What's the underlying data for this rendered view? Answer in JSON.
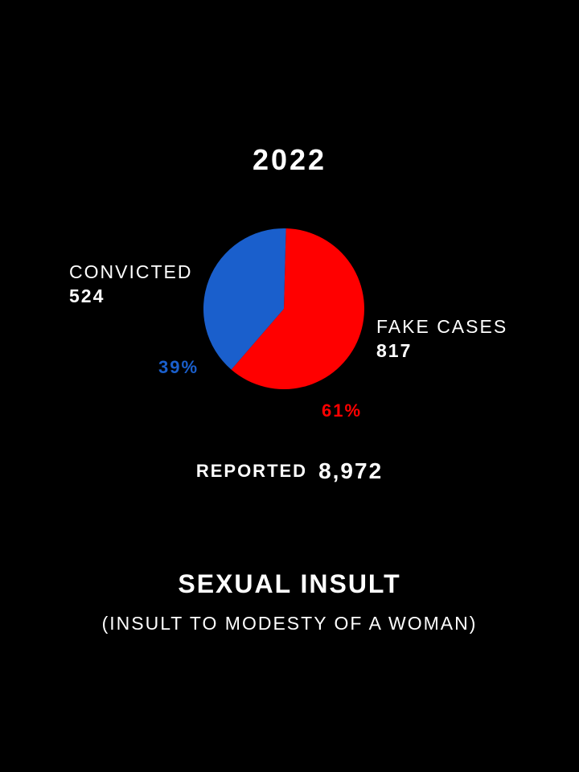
{
  "colors": {
    "background": "#000000",
    "text": "#ffffff",
    "convicted": "#1a5fcc",
    "fake": "#ff0000"
  },
  "chart_data": {
    "type": "pie",
    "title": "2022",
    "slices": [
      {
        "name": "CONVICTED",
        "value": 524,
        "percent_label": "39%",
        "color": "#1a5fcc"
      },
      {
        "name": "FAKE CASES",
        "value": 817,
        "percent_label": "61%",
        "color": "#ff0000"
      }
    ],
    "labels": {
      "convicted_name": "CONVICTED",
      "convicted_value": "524",
      "convicted_pct": "39%",
      "fake_name": "FAKE CASES",
      "fake_value": "817",
      "fake_pct": "61%"
    },
    "reported_label": "REPORTED",
    "reported_value": "8,972"
  },
  "footer": {
    "title": "SEXUAL INSULT",
    "subtitle": "(INSULT TO MODESTY OF A WOMAN)"
  }
}
